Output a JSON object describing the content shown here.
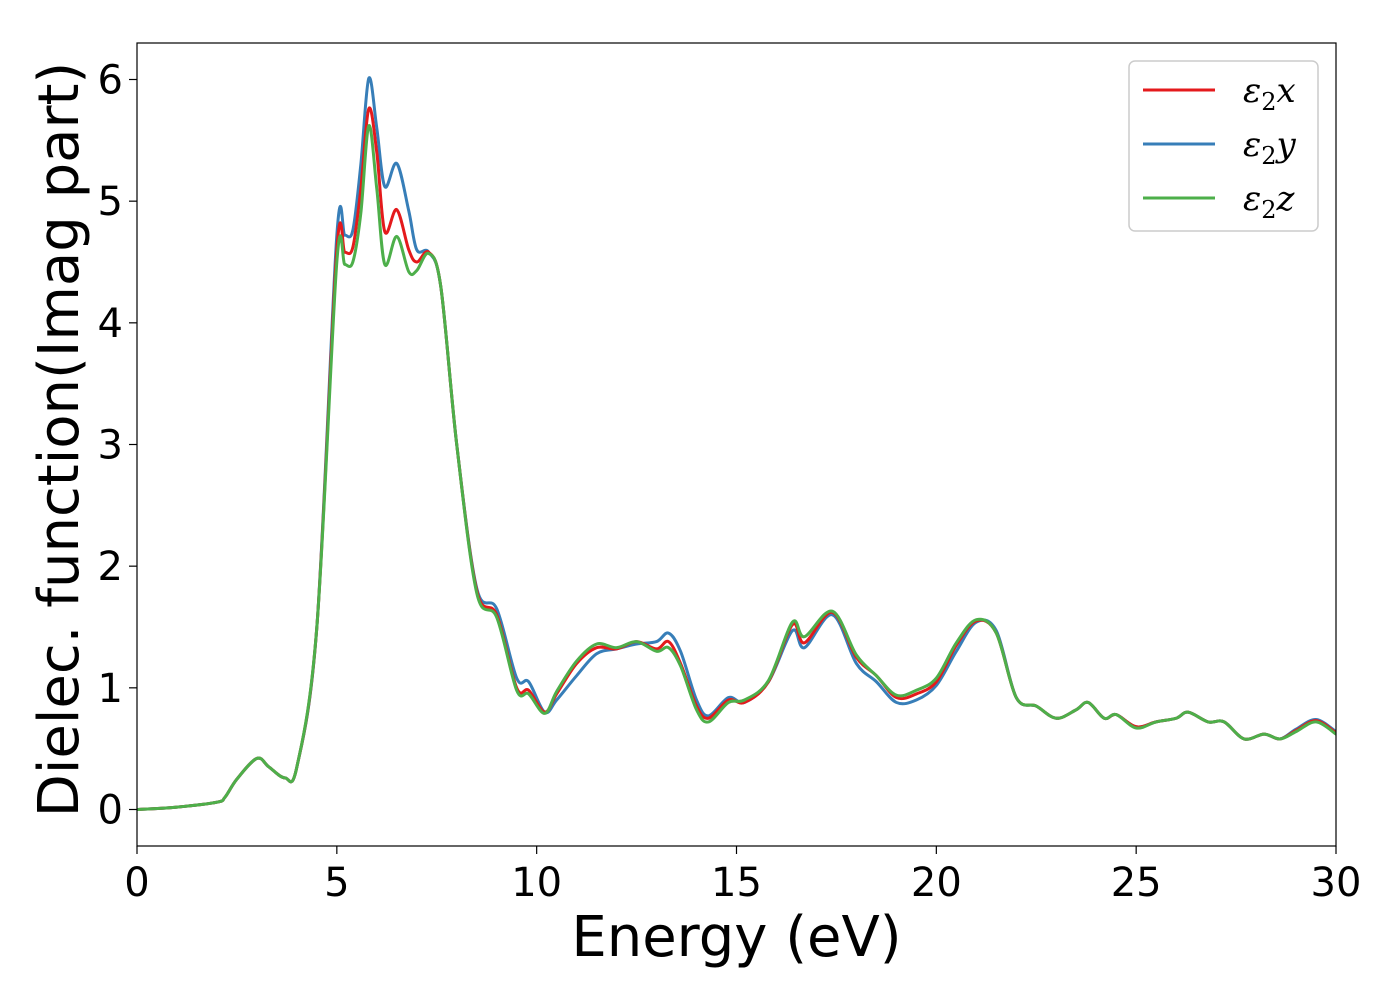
{
  "chart_data": {
    "type": "line",
    "title": "",
    "xlabel": "Energy (eV)",
    "ylabel": "Dielec. function(Imag part)",
    "xlim": [
      0,
      30
    ],
    "ylim": [
      -0.3,
      6.3
    ],
    "xticks": [
      0,
      5,
      10,
      15,
      20,
      25,
      30
    ],
    "yticks": [
      0,
      1,
      2,
      3,
      4,
      5,
      6
    ],
    "grid": false,
    "legend_position": "top-right",
    "legend": [
      {
        "base": "ε",
        "sub": "2",
        "suffix": "x",
        "color": "#e41a1c"
      },
      {
        "base": "ε",
        "sub": "2",
        "suffix": "y",
        "color": "#377eb8"
      },
      {
        "base": "ε",
        "sub": "2",
        "suffix": "z",
        "color": "#4daf4a"
      }
    ],
    "series": [
      {
        "name": "ε2x",
        "color": "#e41a1c",
        "x": [
          0,
          1,
          2,
          2.2,
          2.5,
          3,
          3.3,
          3.7,
          4,
          4.5,
          5,
          5.2,
          5.4,
          5.6,
          5.8,
          6,
          6.2,
          6.5,
          6.8,
          7,
          7.3,
          7.6,
          8,
          8.5,
          9,
          9.5,
          9.8,
          10.2,
          10.5,
          11,
          11.5,
          12,
          12.5,
          13,
          13.3,
          13.6,
          14,
          14.3,
          14.8,
          15.2,
          15.8,
          16.4,
          16.7,
          17.4,
          18,
          18.5,
          19,
          19.5,
          20,
          20.5,
          21,
          21.5,
          22,
          22.5,
          23,
          23.5,
          23.8,
          24.2,
          24.5,
          25,
          25.5,
          26,
          26.3,
          26.8,
          27.2,
          27.7,
          28.2,
          28.6,
          29,
          29.5,
          30
        ],
        "y": [
          0,
          0.02,
          0.06,
          0.1,
          0.25,
          0.42,
          0.35,
          0.26,
          0.35,
          1.5,
          4.6,
          4.58,
          4.62,
          5.1,
          5.76,
          5.4,
          4.75,
          4.93,
          4.6,
          4.5,
          4.58,
          4.3,
          3.0,
          1.8,
          1.6,
          1.0,
          0.98,
          0.8,
          0.95,
          1.2,
          1.33,
          1.32,
          1.38,
          1.32,
          1.38,
          1.2,
          0.85,
          0.75,
          0.9,
          0.88,
          1.05,
          1.52,
          1.37,
          1.62,
          1.25,
          1.1,
          0.92,
          0.95,
          1.05,
          1.35,
          1.55,
          1.45,
          0.92,
          0.85,
          0.75,
          0.82,
          0.88,
          0.75,
          0.78,
          0.68,
          0.72,
          0.75,
          0.8,
          0.72,
          0.72,
          0.58,
          0.62,
          0.58,
          0.65,
          0.73,
          0.63
        ]
      },
      {
        "name": "ε2y",
        "color": "#377eb8",
        "x": [
          0,
          1,
          2,
          2.2,
          2.5,
          3,
          3.3,
          3.7,
          4,
          4.5,
          5,
          5.2,
          5.4,
          5.6,
          5.8,
          6,
          6.2,
          6.5,
          6.8,
          7,
          7.3,
          7.6,
          8,
          8.5,
          9,
          9.5,
          9.8,
          10.2,
          10.5,
          11,
          11.5,
          12,
          12.5,
          13,
          13.3,
          13.6,
          14,
          14.3,
          14.8,
          15.2,
          15.8,
          16.4,
          16.7,
          17.4,
          18,
          18.5,
          19,
          19.5,
          20,
          20.5,
          21,
          21.5,
          22,
          22.5,
          23,
          23.5,
          23.8,
          24.2,
          24.5,
          25,
          25.5,
          26,
          26.3,
          26.8,
          27.2,
          27.7,
          28.2,
          28.6,
          29,
          29.5,
          30
        ],
        "y": [
          0,
          0.02,
          0.06,
          0.1,
          0.25,
          0.42,
          0.35,
          0.26,
          0.35,
          1.5,
          4.72,
          4.72,
          4.76,
          5.3,
          6.01,
          5.6,
          5.12,
          5.31,
          4.92,
          4.6,
          4.58,
          4.3,
          3.0,
          1.82,
          1.65,
          1.08,
          1.05,
          0.8,
          0.9,
          1.1,
          1.28,
          1.32,
          1.36,
          1.38,
          1.45,
          1.3,
          0.9,
          0.77,
          0.92,
          0.88,
          1.05,
          1.47,
          1.33,
          1.6,
          1.2,
          1.05,
          0.88,
          0.9,
          1.02,
          1.3,
          1.54,
          1.47,
          0.92,
          0.85,
          0.75,
          0.82,
          0.88,
          0.75,
          0.78,
          0.68,
          0.72,
          0.75,
          0.8,
          0.72,
          0.72,
          0.58,
          0.62,
          0.58,
          0.66,
          0.74,
          0.64
        ]
      },
      {
        "name": "ε2z",
        "color": "#4daf4a",
        "x": [
          0,
          1,
          2,
          2.2,
          2.5,
          3,
          3.3,
          3.7,
          4,
          4.5,
          5,
          5.2,
          5.4,
          5.6,
          5.8,
          6,
          6.2,
          6.5,
          6.8,
          7,
          7.3,
          7.6,
          8,
          8.5,
          9,
          9.5,
          9.8,
          10.2,
          10.5,
          11,
          11.5,
          12,
          12.5,
          13,
          13.3,
          13.6,
          14,
          14.3,
          14.8,
          15.2,
          15.8,
          16.4,
          16.7,
          17.4,
          18,
          18.5,
          19,
          19.5,
          20,
          20.5,
          21,
          21.5,
          22,
          22.5,
          23,
          23.5,
          23.8,
          24.2,
          24.5,
          25,
          25.5,
          26,
          26.3,
          26.8,
          27.2,
          27.7,
          28.2,
          28.6,
          29,
          29.5,
          30
        ],
        "y": [
          0,
          0.02,
          0.06,
          0.1,
          0.25,
          0.42,
          0.35,
          0.26,
          0.35,
          1.5,
          4.5,
          4.48,
          4.5,
          4.9,
          5.62,
          5.1,
          4.48,
          4.71,
          4.42,
          4.43,
          4.57,
          4.3,
          3.0,
          1.78,
          1.58,
          0.98,
          0.95,
          0.79,
          0.97,
          1.22,
          1.36,
          1.33,
          1.38,
          1.3,
          1.33,
          1.18,
          0.82,
          0.72,
          0.88,
          0.9,
          1.06,
          1.54,
          1.42,
          1.63,
          1.27,
          1.1,
          0.94,
          0.98,
          1.08,
          1.37,
          1.56,
          1.45,
          0.92,
          0.85,
          0.75,
          0.82,
          0.88,
          0.75,
          0.78,
          0.67,
          0.72,
          0.75,
          0.8,
          0.72,
          0.72,
          0.58,
          0.62,
          0.58,
          0.64,
          0.72,
          0.62
        ]
      }
    ]
  }
}
